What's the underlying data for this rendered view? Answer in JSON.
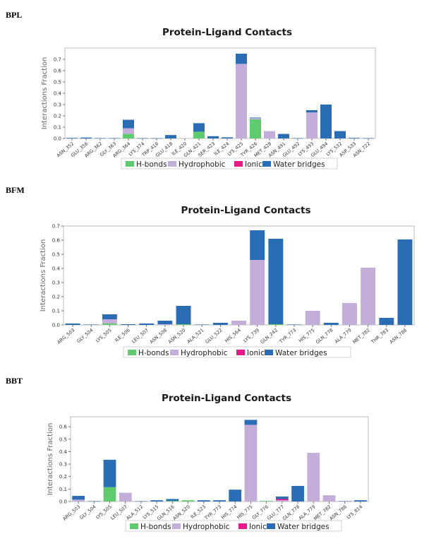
{
  "chart_data": [
    {
      "type": "bar",
      "label": "BPL",
      "title": "Protein-Ligand Contacts",
      "ylabel": "Interactions Fraction",
      "ylim": [
        0,
        0.8
      ],
      "yticks": [
        0.0,
        0.1,
        0.2,
        0.3,
        0.4,
        0.5,
        0.6,
        0.7
      ],
      "ytick_labels": [
        "0.0",
        "0.1",
        "0.2",
        "0.3",
        "0.4",
        "0.5",
        "0.6",
        "0.7"
      ],
      "stacked": true,
      "legend_position": "bottom",
      "categories": [
        "ASN_352",
        "GLU_356",
        "ARG_362",
        "GLY_363",
        "ARG_364",
        "LYS_374",
        "TRP_416",
        "GLU_418",
        "ILE_420",
        "GLN_421",
        "SER_423",
        "ILE_424",
        "LYS_425",
        "TYR_426",
        "MET_428",
        "ASN_491",
        "GLU_492",
        "LYS_493",
        "GLU_494",
        "LYS_532",
        "ASP_533",
        "ASN_722"
      ],
      "series": [
        {
          "name": "H-bonds",
          "color": "#5ecb6f",
          "values": [
            0,
            0,
            0,
            0,
            0.04,
            0,
            0,
            0,
            0,
            0.06,
            0,
            0,
            0,
            0.17,
            0,
            0,
            0,
            0,
            0,
            0,
            0,
            0
          ]
        },
        {
          "name": "Hydrophobic",
          "color": "#c3aed9",
          "values": [
            0,
            0,
            0,
            0,
            0.05,
            0,
            0,
            0,
            0,
            0,
            0,
            0,
            0.66,
            0.01,
            0.065,
            0,
            0,
            0.23,
            0,
            0,
            0,
            0
          ]
        },
        {
          "name": "Ionic",
          "color": "#e8188c",
          "values": [
            0,
            0,
            0,
            0,
            0,
            0,
            0,
            0,
            0,
            0,
            0,
            0,
            0,
            0,
            0,
            0,
            0,
            0,
            0,
            0,
            0,
            0
          ]
        },
        {
          "name": "Water bridges",
          "color": "#2a6db5",
          "values": [
            0.005,
            0.008,
            0.003,
            0.003,
            0.075,
            0.003,
            0.002,
            0.03,
            0,
            0.075,
            0.02,
            0.01,
            0.09,
            0.005,
            0,
            0.04,
            0.003,
            0.02,
            0.3,
            0.065,
            0.005,
            0.003
          ]
        }
      ]
    },
    {
      "type": "bar",
      "label": "BFM",
      "title": "Protein-Ligand Contacts",
      "ylabel": "Interactions Fraction",
      "ylim": [
        0,
        0.7
      ],
      "yticks": [
        0.0,
        0.1,
        0.2,
        0.3,
        0.4,
        0.5,
        0.6,
        0.7
      ],
      "ytick_labels": [
        "0.0",
        "0.1",
        "0.2",
        "0.3",
        "0.4",
        "0.5",
        "0.6",
        "0.7"
      ],
      "stacked": true,
      "legend_position": "bottom",
      "categories": [
        "ARG_503",
        "GLY_504",
        "LYS_505",
        "ILE_506",
        "LEU_507",
        "ASN_508",
        "ASN_520",
        "ALA_521",
        "GLU_522",
        "HIS_564",
        "LYS_739",
        "GLN_242",
        "TYR_773",
        "HIS_775",
        "GLN_778",
        "ALA_779",
        "MET_782",
        "THR_783",
        "ASN_786"
      ],
      "series": [
        {
          "name": "H-bonds",
          "color": "#5ecb6f",
          "values": [
            0,
            0,
            0.01,
            0,
            0,
            0,
            0.005,
            0,
            0,
            0,
            0,
            0.005,
            0,
            0,
            0,
            0,
            0,
            0,
            0
          ]
        },
        {
          "name": "Hydrophobic",
          "color": "#c3aed9",
          "values": [
            0,
            0,
            0.03,
            0,
            0,
            0.005,
            0,
            0,
            0,
            0.03,
            0.46,
            0,
            0,
            0.1,
            0,
            0.155,
            0.405,
            0,
            0
          ]
        },
        {
          "name": "Ionic",
          "color": "#e8188c",
          "values": [
            0,
            0,
            0,
            0,
            0,
            0,
            0,
            0,
            0,
            0,
            0,
            0,
            0,
            0,
            0,
            0,
            0,
            0,
            0
          ]
        },
        {
          "name": "Water bridges",
          "color": "#2a6db5",
          "values": [
            0.01,
            0.003,
            0.035,
            0.005,
            0.01,
            0.025,
            0.13,
            0.003,
            0.015,
            0,
            0.21,
            0.605,
            0.003,
            0,
            0.015,
            0,
            0,
            0.05,
            0.605
          ]
        }
      ]
    },
    {
      "type": "bar",
      "label": "BBT",
      "title": "Protein-Ligand Contacts",
      "ylabel": "Interactions Fraction",
      "ylim": [
        0,
        0.68
      ],
      "yticks": [
        0.0,
        0.1,
        0.2,
        0.3,
        0.4,
        0.5,
        0.6
      ],
      "ytick_labels": [
        "0.0",
        "0.1",
        "0.2",
        "0.3",
        "0.4",
        "0.5",
        "0.6"
      ],
      "stacked": true,
      "legend_position": "bottom",
      "categories": [
        "ARG_503",
        "GLY_504",
        "LYS_505",
        "LEU_507",
        "ALA_512",
        "LYS_515",
        "GLN_516",
        "ASN_520",
        "ILE_523",
        "TYR_773",
        "HIS_774",
        "HIS_775",
        "GLY_776",
        "GLU_777",
        "GLN_778",
        "ALA_779",
        "MET_782",
        "ASN_786",
        "LYS_814"
      ],
      "series": [
        {
          "name": "H-bonds",
          "color": "#5ecb6f",
          "values": [
            0,
            0,
            0.115,
            0,
            0,
            0,
            0.005,
            0.01,
            0,
            0,
            0,
            0,
            0.005,
            0,
            0,
            0,
            0,
            0,
            0
          ]
        },
        {
          "name": "Hydrophobic",
          "color": "#c3aed9",
          "values": [
            0.015,
            0,
            0,
            0.07,
            0,
            0,
            0,
            0,
            0,
            0,
            0,
            0.615,
            0,
            0.01,
            0,
            0.39,
            0.05,
            0,
            0
          ]
        },
        {
          "name": "Ionic",
          "color": "#e8188c",
          "values": [
            0,
            0,
            0,
            0,
            0,
            0,
            0,
            0,
            0,
            0,
            0,
            0,
            0,
            0.01,
            0,
            0,
            0,
            0,
            0
          ]
        },
        {
          "name": "Water bridges",
          "color": "#2a6db5",
          "values": [
            0.03,
            0.003,
            0.22,
            0,
            0.003,
            0.01,
            0.015,
            0,
            0.01,
            0.01,
            0.095,
            0.04,
            0,
            0.02,
            0.125,
            0,
            0,
            0.003,
            0.01
          ]
        }
      ]
    }
  ]
}
